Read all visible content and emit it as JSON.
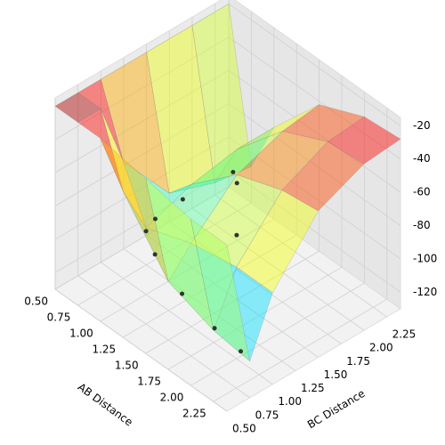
{
  "chart_data": {
    "type": "surface3d",
    "x_label": "AB Distance",
    "y_label": "BC Distance",
    "xlim": [
      0.5,
      2.4
    ],
    "ylim": [
      0.5,
      2.4
    ],
    "zlim": [
      -130,
      -15
    ],
    "xticks": [
      {
        "value": 0.5,
        "label": "0.50"
      },
      0.75,
      {
        "value": 1.0,
        "label": "1.00"
      },
      1.25,
      {
        "value": 1.5,
        "label": "1.50"
      },
      1.75,
      {
        "value": 2.0,
        "label": "2.00"
      },
      2.25
    ],
    "yticks": [
      {
        "value": 0.5,
        "label": "0.50"
      },
      0.75,
      {
        "value": 1.0,
        "label": "1.00"
      },
      1.25,
      {
        "value": 1.5,
        "label": "1.50"
      },
      1.75,
      {
        "value": 2.0,
        "label": "2.00"
      },
      2.25
    ],
    "zticks": [
      -120,
      -100,
      -80,
      -60,
      -40,
      -20
    ],
    "grid": true,
    "surface": {
      "x": [
        0.5,
        0.75,
        1.0,
        1.5,
        2.0,
        2.4
      ],
      "y": [
        0.5,
        0.75,
        1.0,
        1.5,
        2.0,
        2.4
      ],
      "z": [
        [
          -20,
          -20,
          -20,
          -20,
          -20,
          -20
        ],
        [
          -20,
          -20,
          -60,
          -95,
          -105,
          -108
        ],
        [
          -20,
          -60,
          -90,
          -80,
          -75,
          -75
        ],
        [
          -25,
          -95,
          -80,
          -55,
          -45,
          -42
        ],
        [
          -30,
          -105,
          -75,
          -45,
          -32,
          -30
        ],
        [
          -30,
          -108,
          -75,
          -42,
          -30,
          -28
        ]
      ]
    },
    "points": {
      "color": "#333333",
      "x": [
        0.75,
        0.8,
        0.9,
        1.0,
        1.2,
        1.6,
        2.0,
        2.3,
        1.5,
        1.8
      ],
      "y": [
        2.2,
        1.6,
        1.2,
        1.0,
        0.9,
        0.8,
        0.76,
        0.75,
        1.5,
        1.2
      ],
      "z": [
        -105,
        -100,
        -95,
        -92,
        -95,
        -100,
        -104,
        -106,
        -60,
        -70
      ]
    }
  }
}
